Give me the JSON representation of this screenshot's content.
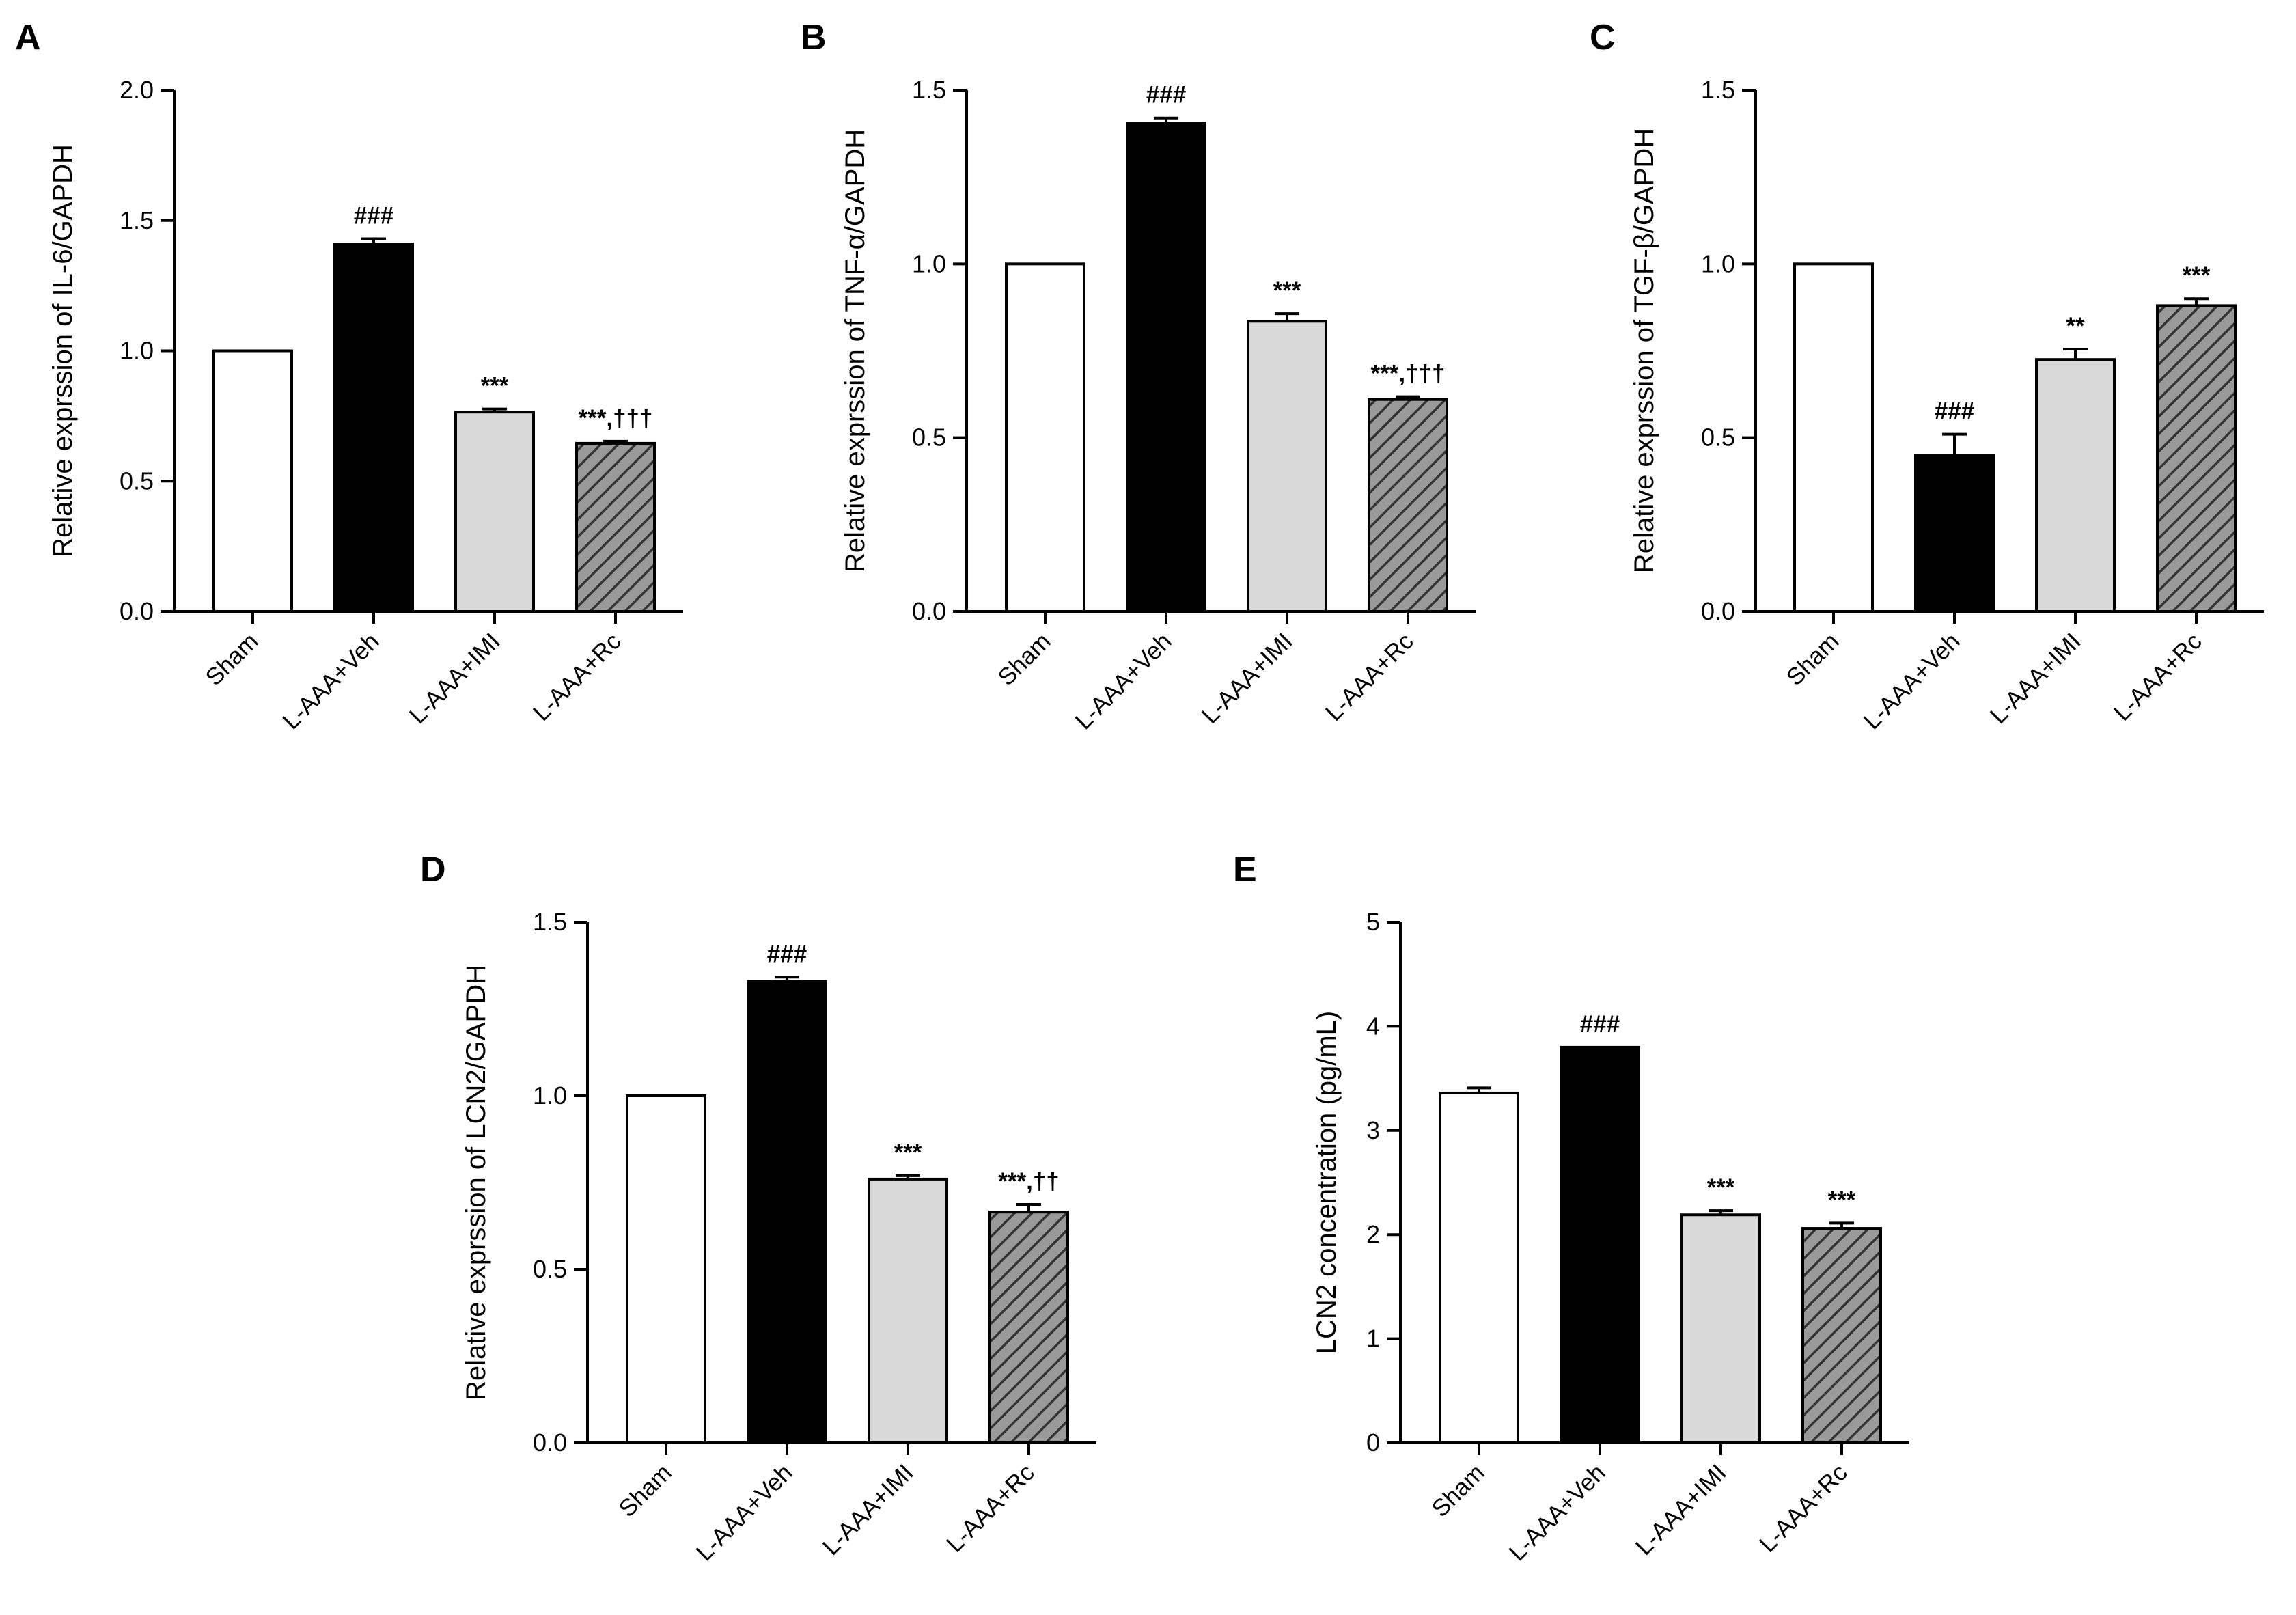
{
  "chart_data": [
    {
      "panel": "A",
      "type": "bar",
      "ylabel": "Relative exprssion of IL-6/GAPDH",
      "categories": [
        "Sham",
        "L-AAA+Veh",
        "L-AAA+IMI",
        "L-AAA+Rc"
      ],
      "values": [
        1.0,
        1.41,
        0.765,
        0.645
      ],
      "errors": [
        0,
        0.02,
        0.012,
        0.008
      ],
      "annotations": [
        "",
        "###",
        "***",
        "***,†††"
      ],
      "ylim": [
        0,
        2.0
      ],
      "yticks": [
        0.0,
        0.5,
        1.0,
        1.5,
        2.0
      ],
      "ytick_labels": [
        "0.0",
        "0.5",
        "1.0",
        "1.5",
        "2.0"
      ]
    },
    {
      "panel": "B",
      "type": "bar",
      "ylabel": "Relative exprssion of TNF-α/GAPDH",
      "categories": [
        "Sham",
        "L-AAA+Veh",
        "L-AAA+IMI",
        "L-AAA+Rc"
      ],
      "values": [
        1.0,
        1.405,
        0.835,
        0.61
      ],
      "errors": [
        0,
        0.015,
        0.022,
        0.008
      ],
      "annotations": [
        "",
        "###",
        "***",
        "***,†††"
      ],
      "ylim": [
        0,
        1.5
      ],
      "yticks": [
        0.0,
        0.5,
        1.0,
        1.5
      ],
      "ytick_labels": [
        "0.0",
        "0.5",
        "1.0",
        "1.5"
      ]
    },
    {
      "panel": "C",
      "type": "bar",
      "ylabel": "Relative exprssion of TGF-β/GAPDH",
      "categories": [
        "Sham",
        "L-AAA+Veh",
        "L-AAA+IMI",
        "L-AAA+Rc"
      ],
      "values": [
        1.0,
        0.45,
        0.725,
        0.88
      ],
      "errors": [
        0,
        0.06,
        0.03,
        0.02
      ],
      "annotations": [
        "",
        "###",
        "**",
        "***"
      ],
      "ylim": [
        0,
        1.5
      ],
      "yticks": [
        0.0,
        0.5,
        1.0,
        1.5
      ],
      "ytick_labels": [
        "0.0",
        "0.5",
        "1.0",
        "1.5"
      ]
    },
    {
      "panel": "D",
      "type": "bar",
      "ylabel": "Relative exprssion of LCN2/GAPDH",
      "categories": [
        "Sham",
        "L-AAA+Veh",
        "L-AAA+IMI",
        "L-AAA+Rc"
      ],
      "values": [
        1.0,
        1.33,
        0.76,
        0.665
      ],
      "errors": [
        0,
        0.012,
        0.01,
        0.022
      ],
      "annotations": [
        "",
        "###",
        "***",
        "***,††"
      ],
      "ylim": [
        0,
        1.5
      ],
      "yticks": [
        0.0,
        0.5,
        1.0,
        1.5
      ],
      "ytick_labels": [
        "0.0",
        "0.5",
        "1.0",
        "1.5"
      ]
    },
    {
      "panel": "E",
      "type": "bar",
      "ylabel": "LCN2 concentration (pg/mL)",
      "categories": [
        "Sham",
        "L-AAA+Veh",
        "L-AAA+IMI",
        "L-AAA+Rc"
      ],
      "values": [
        3.36,
        3.8,
        2.19,
        2.06
      ],
      "errors": [
        0.05,
        0,
        0.04,
        0.05
      ],
      "annotations": [
        "",
        "###",
        "***",
        "***"
      ],
      "ylim": [
        0,
        5
      ],
      "yticks": [
        0,
        1,
        2,
        3,
        4,
        5
      ],
      "ytick_labels": [
        "0",
        "1",
        "2",
        "3",
        "4",
        "5"
      ]
    }
  ],
  "series_styles": [
    {
      "name": "Sham",
      "fill": "#ffffff"
    },
    {
      "name": "L-AAA+Veh",
      "fill": "#000000"
    },
    {
      "name": "L-AAA+IMI",
      "fill": "#d9d9d9"
    },
    {
      "name": "L-AAA+Rc",
      "fill": "#9a9a9a",
      "pattern": "diagonal-hatch"
    }
  ]
}
